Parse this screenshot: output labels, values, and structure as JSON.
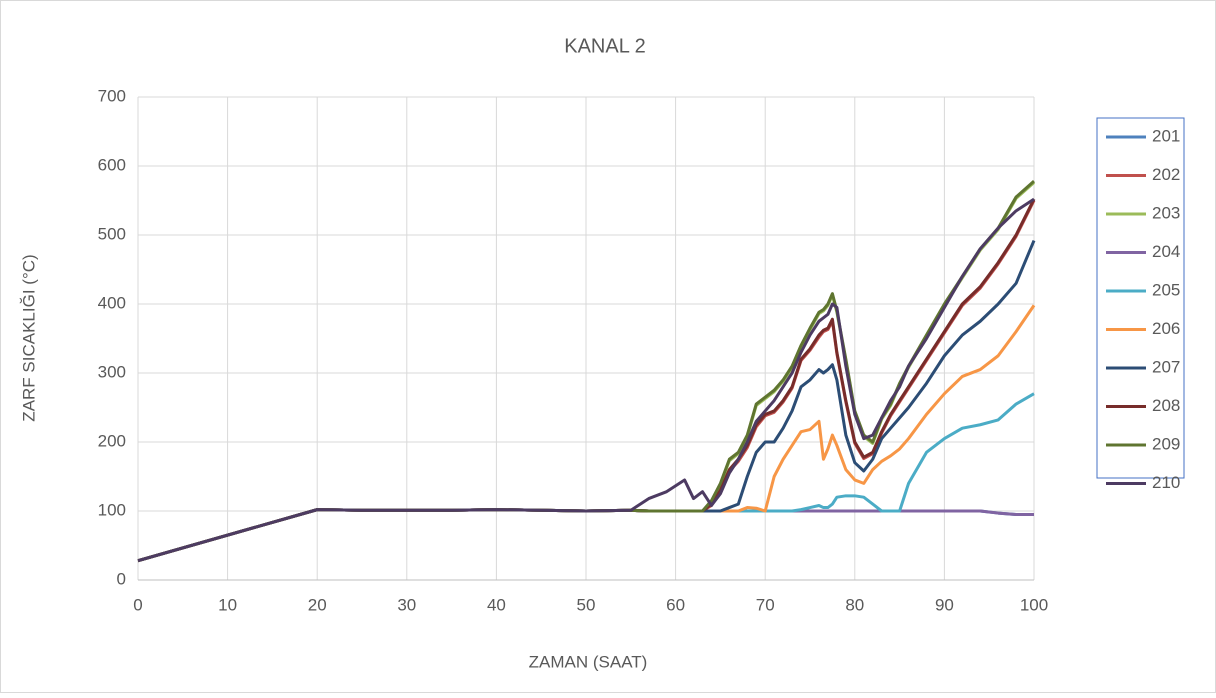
{
  "chart_data": {
    "type": "line",
    "title": "KANAL 2",
    "xlabel": "ZAMAN (SAAT)",
    "ylabel": "ZARF SICAKLIĞI (°C)",
    "x": [
      0,
      20,
      25,
      30,
      35,
      40,
      45,
      50,
      55,
      57,
      59,
      61,
      62,
      63,
      64,
      65,
      66,
      67,
      68,
      69,
      70,
      71,
      72,
      73,
      74,
      75,
      76,
      76.5,
      77,
      77.5,
      78,
      79,
      80,
      81,
      82,
      83,
      84,
      85,
      86,
      88,
      90,
      92,
      94,
      96,
      98,
      100
    ],
    "xlim": [
      0,
      100
    ],
    "xticks": [
      0,
      10,
      20,
      30,
      40,
      50,
      60,
      70,
      80,
      90,
      100
    ],
    "ylim": [
      0,
      700
    ],
    "yticks": [
      0,
      100,
      200,
      300,
      400,
      500,
      600,
      700
    ],
    "grid": true,
    "legend": "right",
    "series": [
      {
        "name": "201",
        "color": "#4e81bd",
        "values": [
          28,
          102,
          101,
          101,
          101,
          102,
          101,
          100,
          101,
          100,
          100,
          100,
          100,
          100,
          100,
          100,
          100,
          100,
          100,
          100,
          100,
          100,
          100,
          100,
          100,
          100,
          100,
          100,
          100,
          100,
          100,
          100,
          100,
          100,
          100,
          100,
          100,
          100,
          100,
          100,
          100,
          100,
          100,
          97,
          95,
          95
        ]
      },
      {
        "name": "202",
        "color": "#c0504d",
        "values": [
          28,
          102,
          101,
          101,
          101,
          102,
          101,
          100,
          101,
          100,
          100,
          100,
          100,
          100,
          108,
          128,
          158,
          172,
          192,
          222,
          238,
          243,
          258,
          278,
          318,
          333,
          352,
          360,
          363,
          375,
          328,
          258,
          198,
          176,
          183,
          213,
          238,
          258,
          278,
          318,
          358,
          398,
          423,
          458,
          498,
          550
        ]
      },
      {
        "name": "203",
        "color": "#9bbb59",
        "values": [
          28,
          102,
          101,
          101,
          101,
          102,
          101,
          100,
          101,
          100,
          100,
          100,
          100,
          100,
          113,
          138,
          173,
          183,
          208,
          253,
          263,
          273,
          288,
          308,
          338,
          363,
          386,
          390,
          398,
          413,
          388,
          318,
          243,
          208,
          198,
          233,
          253,
          283,
          308,
          353,
          398,
          438,
          478,
          508,
          553,
          576
        ]
      },
      {
        "name": "204",
        "color": "#8064a2",
        "values": [
          28,
          102,
          101,
          101,
          101,
          102,
          101,
          100,
          101,
          100,
          100,
          100,
          100,
          100,
          100,
          100,
          100,
          100,
          100,
          100,
          100,
          100,
          100,
          100,
          100,
          100,
          100,
          100,
          100,
          100,
          100,
          100,
          100,
          100,
          100,
          100,
          100,
          100,
          100,
          100,
          100,
          100,
          100,
          97,
          95,
          95
        ]
      },
      {
        "name": "205",
        "color": "#4bacc6",
        "values": [
          28,
          102,
          101,
          101,
          101,
          102,
          101,
          100,
          101,
          100,
          100,
          100,
          100,
          100,
          100,
          100,
          100,
          100,
          100,
          100,
          100,
          100,
          100,
          100,
          102,
          105,
          108,
          105,
          105,
          110,
          120,
          122,
          122,
          120,
          110,
          100,
          100,
          100,
          140,
          185,
          205,
          220,
          225,
          232,
          255,
          270
        ]
      },
      {
        "name": "206",
        "color": "#f79646",
        "values": [
          28,
          102,
          101,
          101,
          101,
          102,
          101,
          100,
          101,
          100,
          100,
          100,
          100,
          100,
          100,
          100,
          100,
          100,
          105,
          104,
          100,
          150,
          175,
          195,
          215,
          218,
          230,
          175,
          190,
          210,
          195,
          160,
          145,
          140,
          160,
          172,
          180,
          190,
          205,
          240,
          270,
          295,
          305,
          325,
          360,
          398
        ]
      },
      {
        "name": "207",
        "color": "#2c4d75",
        "values": [
          28,
          102,
          101,
          101,
          101,
          102,
          101,
          100,
          101,
          100,
          100,
          100,
          100,
          100,
          100,
          100,
          105,
          110,
          150,
          185,
          200,
          200,
          220,
          245,
          280,
          290,
          305,
          300,
          305,
          312,
          290,
          210,
          170,
          158,
          175,
          205,
          220,
          235,
          250,
          285,
          325,
          355,
          375,
          400,
          430,
          492
        ]
      },
      {
        "name": "208",
        "color": "#772c2a",
        "values": [
          28,
          102,
          101,
          101,
          101,
          102,
          101,
          100,
          101,
          100,
          100,
          100,
          100,
          100,
          110,
          130,
          160,
          175,
          195,
          225,
          240,
          245,
          260,
          280,
          320,
          335,
          355,
          362,
          365,
          378,
          330,
          260,
          200,
          178,
          185,
          215,
          240,
          260,
          280,
          320,
          360,
          400,
          425,
          460,
          500,
          552
        ]
      },
      {
        "name": "209",
        "color": "#5f7530",
        "values": [
          28,
          102,
          101,
          101,
          101,
          102,
          101,
          100,
          101,
          100,
          100,
          100,
          100,
          100,
          115,
          140,
          175,
          185,
          210,
          255,
          265,
          275,
          290,
          310,
          340,
          365,
          388,
          392,
          400,
          415,
          390,
          320,
          245,
          210,
          200,
          235,
          255,
          285,
          310,
          355,
          400,
          440,
          480,
          510,
          555,
          578
        ]
      },
      {
        "name": "210",
        "color": "#4d3b62",
        "values": [
          28,
          102,
          101,
          101,
          101,
          102,
          101,
          100,
          101,
          118,
          128,
          145,
          118,
          128,
          108,
          125,
          155,
          175,
          200,
          230,
          245,
          260,
          280,
          300,
          330,
          355,
          375,
          380,
          385,
          400,
          395,
          310,
          240,
          205,
          210,
          235,
          260,
          280,
          310,
          350,
          395,
          440,
          480,
          510,
          535,
          552
        ]
      }
    ]
  }
}
